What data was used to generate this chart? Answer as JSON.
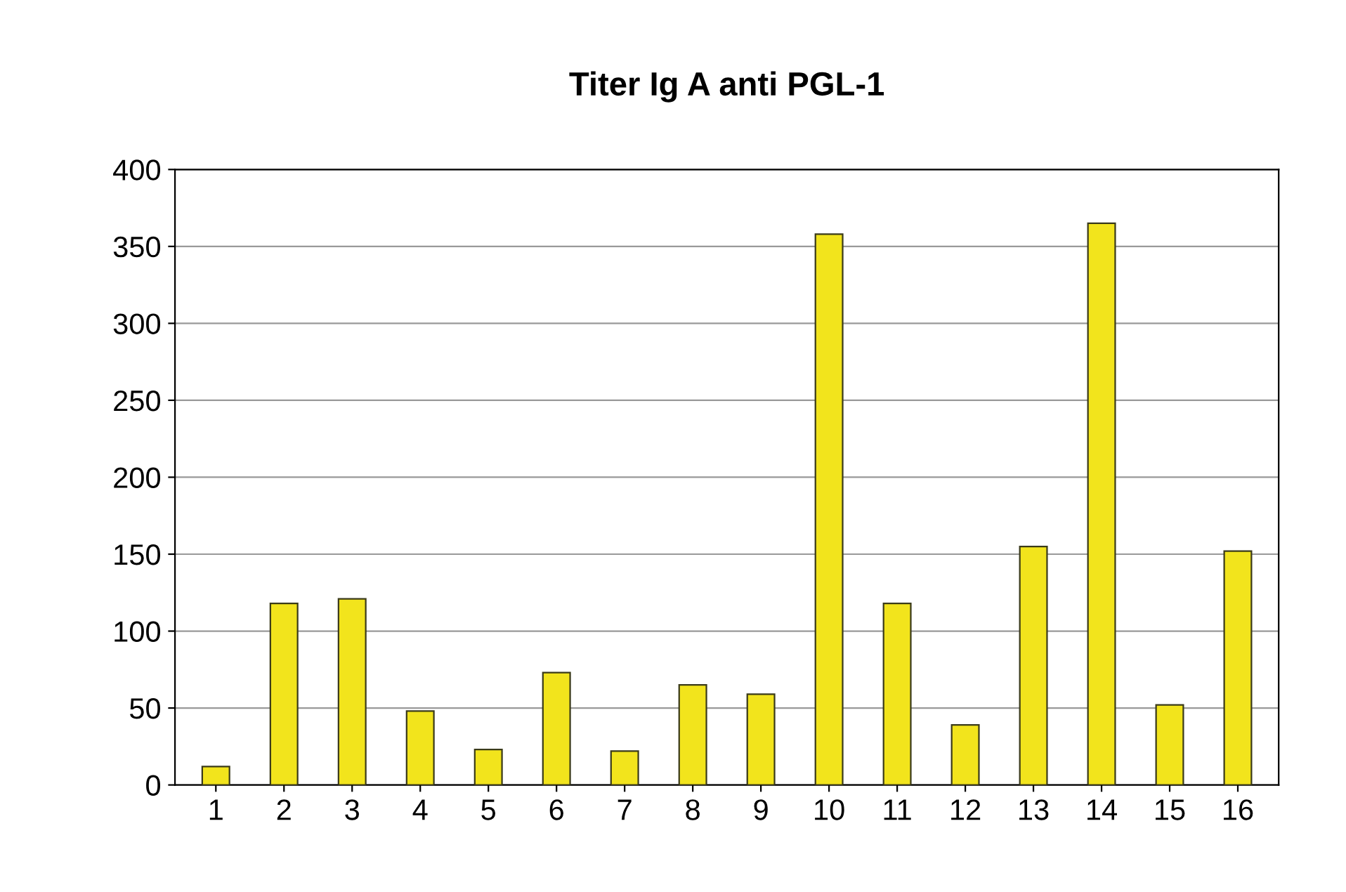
{
  "chart_data": {
    "type": "bar",
    "title": "Titer Ig A anti PGL-1",
    "categories": [
      "1",
      "2",
      "3",
      "4",
      "5",
      "6",
      "7",
      "8",
      "9",
      "10",
      "11",
      "12",
      "13",
      "14",
      "15",
      "16"
    ],
    "values": [
      12,
      118,
      121,
      48,
      23,
      73,
      22,
      65,
      59,
      358,
      118,
      39,
      155,
      365,
      52,
      152
    ],
    "color": "#f2e41c",
    "ylim": [
      0,
      400
    ],
    "yticks": [
      0,
      50,
      100,
      150,
      200,
      250,
      300,
      350,
      400
    ],
    "grid": "y"
  }
}
